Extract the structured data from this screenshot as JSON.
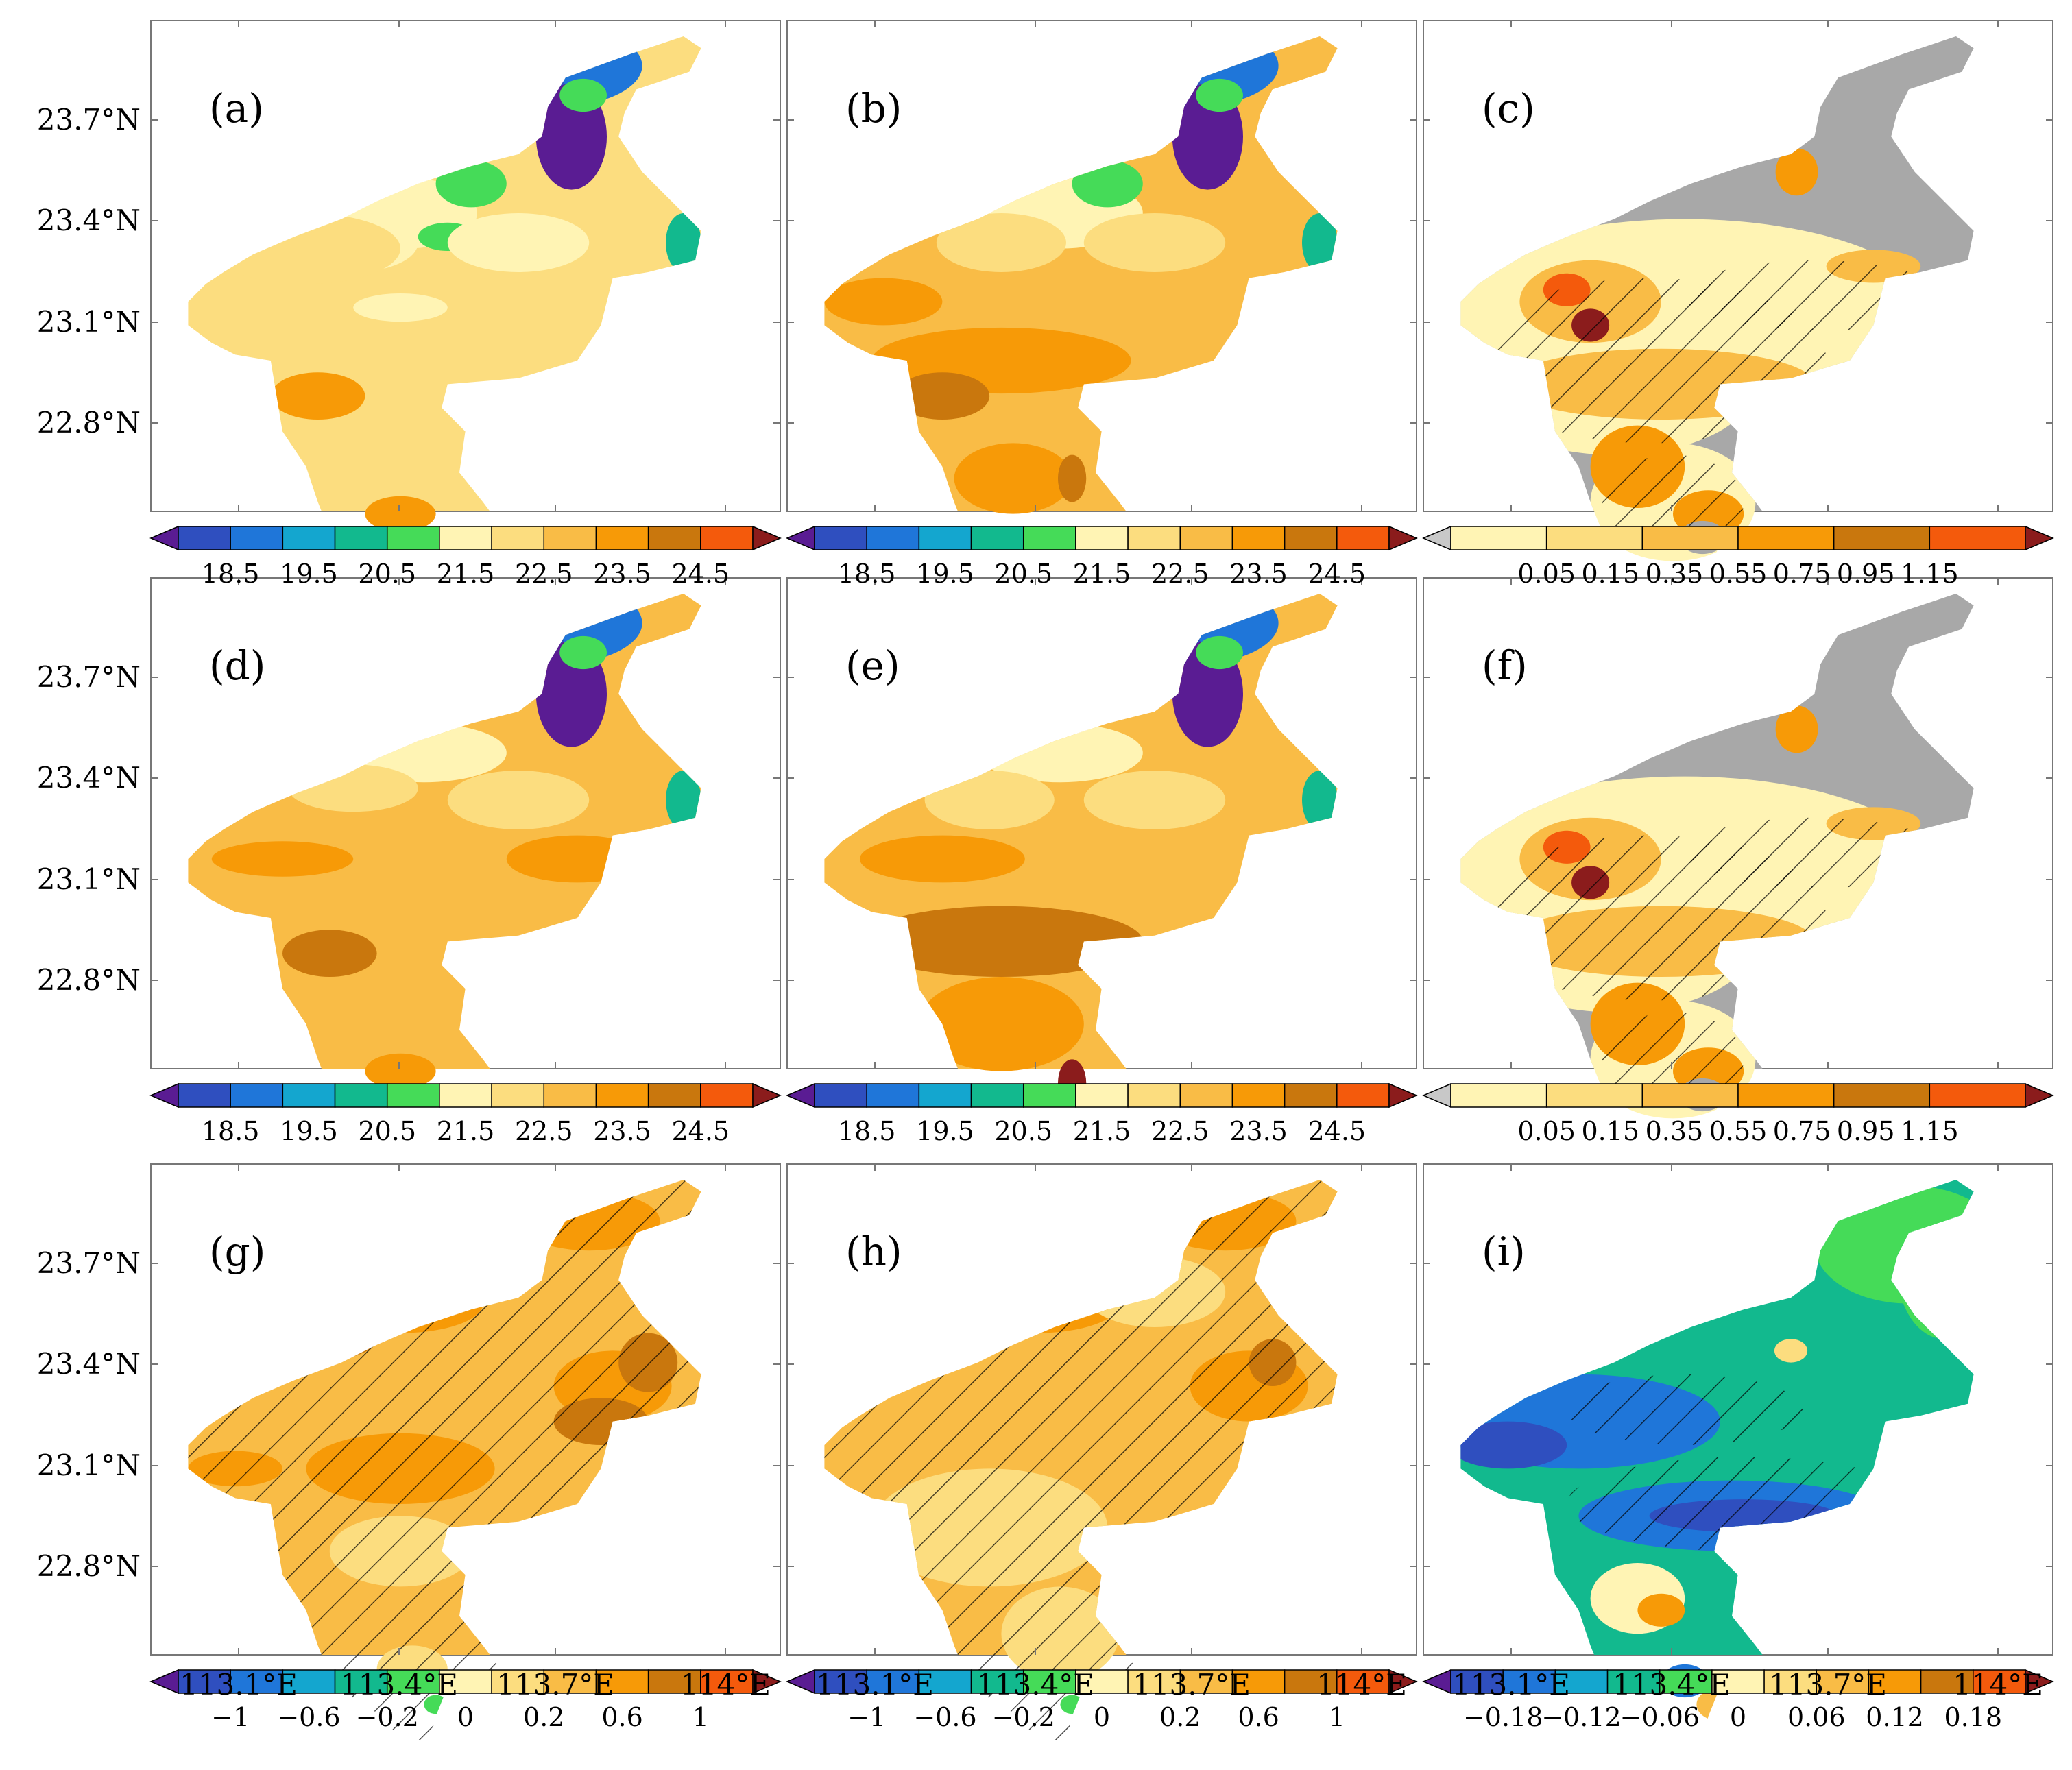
{
  "latitude_labels": [
    "23.7°N",
    "23.4°N",
    "23.1°N",
    "22.8°N"
  ],
  "longitude_labels": [
    "113.1°E",
    "113.4°E",
    "113.7°E",
    "114°E"
  ],
  "colors": {
    "gray": "#a8a8a8",
    "temp_scale": [
      "#5a1c93",
      "#2f4fbf",
      "#1f76d9",
      "#14a6cf",
      "#12b98e",
      "#45db58",
      "#fff4b4",
      "#fcdd7f",
      "#f9bc46",
      "#f79a07",
      "#c9770d",
      "#f45a0c",
      "#8b1c1c"
    ],
    "diff_scale": [
      "#c8c8c8",
      "#fff4b4",
      "#fcdd7f",
      "#f9bc46",
      "#f79a07",
      "#c9770d",
      "#f45a0c",
      "#8b1c1c"
    ]
  },
  "colorbars": {
    "temperature": [
      "18.5",
      "19.5",
      "20.5",
      "21.5",
      "22.5",
      "23.5",
      "24.5"
    ],
    "difference": [
      "0.05",
      "0.15",
      "0.35",
      "0.55",
      "0.75",
      "0.95",
      "1.15"
    ],
    "trend": [
      "−1",
      "−0.6",
      "−0.2",
      "0",
      "0.2",
      "0.6",
      "1"
    ],
    "trend_diff": [
      "−0.18",
      "−0.12",
      "−0.06",
      "0",
      "0.06",
      "0.12",
      "0.18"
    ]
  },
  "panels": [
    {
      "id": "a",
      "label": "(a)",
      "type": "temp_low",
      "hatched": false,
      "colorbar": "temperature"
    },
    {
      "id": "b",
      "label": "(b)",
      "type": "temp_high",
      "hatched": false,
      "colorbar": "temperature"
    },
    {
      "id": "c",
      "label": "(c)",
      "type": "diff",
      "hatched": true,
      "colorbar": "difference"
    },
    {
      "id": "d",
      "label": "(d)",
      "type": "temp_mid",
      "hatched": false,
      "colorbar": "temperature"
    },
    {
      "id": "e",
      "label": "(e)",
      "type": "temp_hot",
      "hatched": false,
      "colorbar": "temperature"
    },
    {
      "id": "f",
      "label": "(f)",
      "type": "diff",
      "hatched": true,
      "colorbar": "difference"
    },
    {
      "id": "g",
      "label": "(g)",
      "type": "trend",
      "hatched": true,
      "colorbar": "trend"
    },
    {
      "id": "h",
      "label": "(h)",
      "type": "trend_light",
      "hatched": true,
      "colorbar": "trend"
    },
    {
      "id": "i",
      "label": "(i)",
      "type": "trend_diff",
      "hatched": true,
      "colorbar": "trend_diff"
    }
  ]
}
